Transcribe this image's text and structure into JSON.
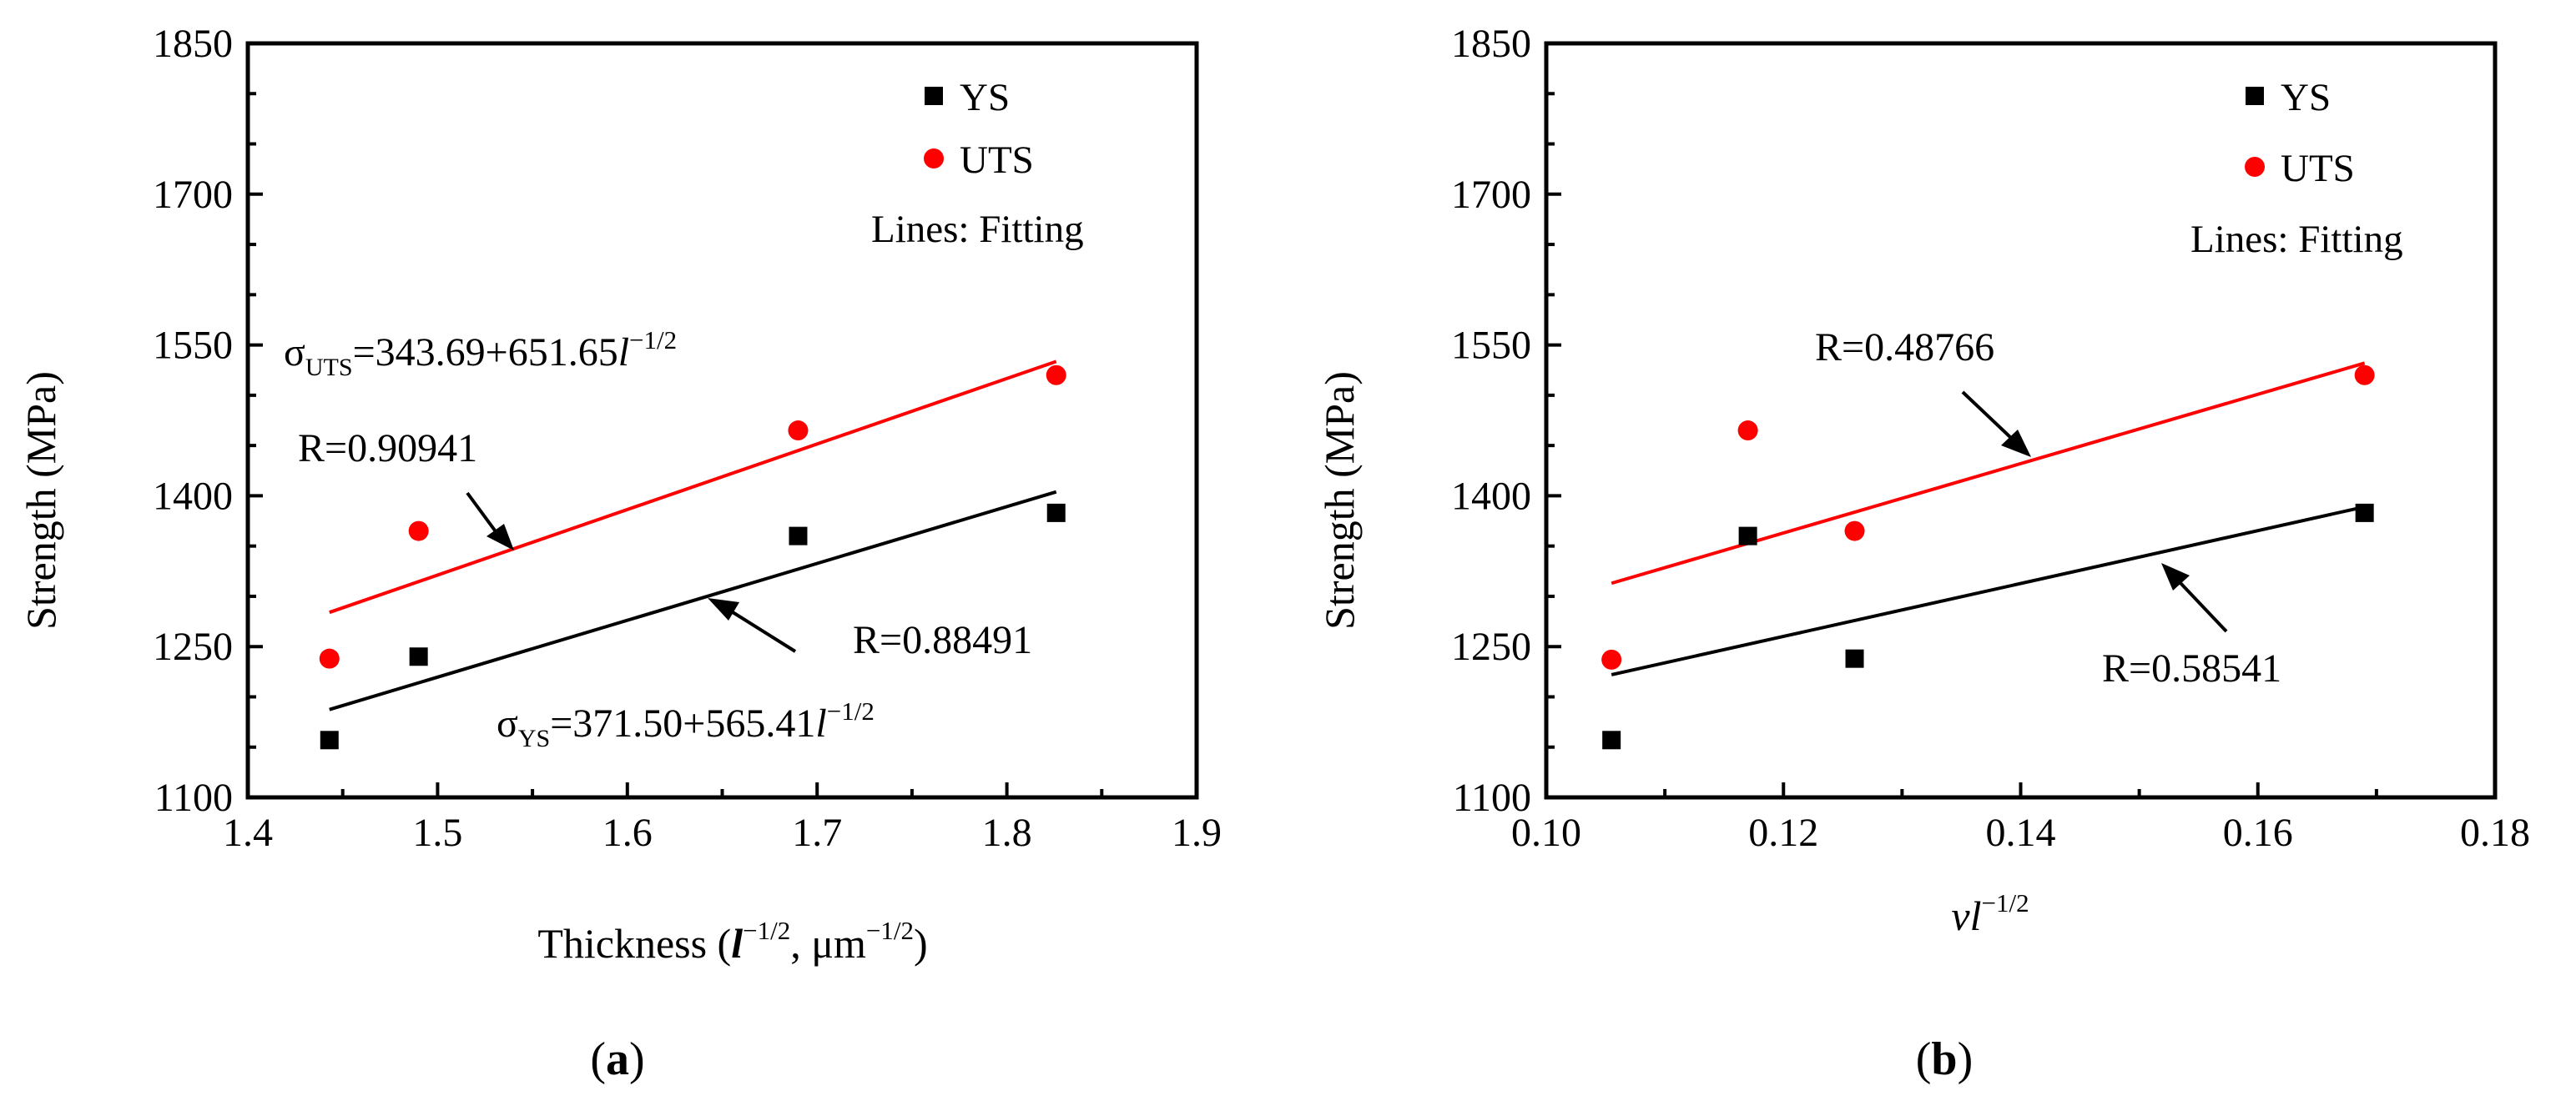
{
  "chart_data": [
    {
      "panel_label": "(a)",
      "panel_letter": "a",
      "type": "scatter",
      "xlabel": "Thickness (l⁻¹ᐟ², μm⁻¹ᐟ²)",
      "xlabel_main": "Thickness (",
      "xlabel_l": "l",
      "xlabel_sup1": "−1/2",
      "xlabel_mid": ", μm",
      "xlabel_sup2": "−1/2",
      "xlabel_end": ")",
      "ylabel": "Strength (MPa)",
      "xlim": [
        1.4,
        1.9
      ],
      "ylim": [
        1100,
        1850
      ],
      "xticks": [
        "1.4",
        "1.5",
        "1.6",
        "1.7",
        "1.8",
        "1.9"
      ],
      "yticks": [
        "1100",
        "1250",
        "1400",
        "1550",
        "1700",
        "1850"
      ],
      "legend": {
        "ys": "YS",
        "uts": "UTS",
        "note": "Lines: Fitting"
      },
      "series": [
        {
          "name": "YS",
          "color": "#000000",
          "marker": "square",
          "x": [
            1.443,
            1.49,
            1.69,
            1.826
          ],
          "y": [
            1157,
            1240,
            1360,
            1383
          ]
        },
        {
          "name": "UTS",
          "color": "#ff0000",
          "marker": "circle",
          "x": [
            1.443,
            1.49,
            1.69,
            1.826
          ],
          "y": [
            1238,
            1365,
            1465,
            1520
          ]
        }
      ],
      "fits": [
        {
          "series": "YS",
          "color": "#000000",
          "intercept": 371.5,
          "slope": 565.41,
          "x_range": [
            1.443,
            1.826
          ]
        },
        {
          "series": "UTS",
          "color": "#ff0000",
          "intercept": 343.69,
          "slope": 651.65,
          "x_range": [
            1.443,
            1.826
          ]
        }
      ],
      "annotations": {
        "uts_eq_sigma": "σ",
        "uts_eq_sub": "UTS",
        "uts_eq_main": "=343.69+651.65",
        "uts_eq_l": "l",
        "uts_eq_sup": "−1/2",
        "uts_r": "R=0.90941",
        "ys_eq_sigma": "σ",
        "ys_eq_sub": "YS",
        "ys_eq_main": "=371.50+565.41",
        "ys_eq_l": "l",
        "ys_eq_sup": "−1/2",
        "ys_r": "R=0.88491"
      }
    },
    {
      "panel_label": "(b)",
      "panel_letter": "b",
      "type": "scatter",
      "xlabel_v": "v",
      "xlabel_l": "l",
      "xlabel_sup": "−1/2",
      "ylabel": "Strength (MPa)",
      "xlim": [
        0.1,
        0.18
      ],
      "ylim": [
        1100,
        1850
      ],
      "xticks": [
        "0.10",
        "0.12",
        "0.14",
        "0.16",
        "0.18"
      ],
      "yticks": [
        "1100",
        "1250",
        "1400",
        "1550",
        "1700",
        "1850"
      ],
      "legend": {
        "ys": "YS",
        "uts": "UTS",
        "note": "Lines: Fitting"
      },
      "series": [
        {
          "name": "YS",
          "color": "#000000",
          "marker": "square",
          "x": [
            0.1055,
            0.117,
            0.126,
            0.169
          ],
          "y": [
            1157,
            1360,
            1238,
            1383
          ]
        },
        {
          "name": "UTS",
          "color": "#ff0000",
          "marker": "circle",
          "x": [
            0.1055,
            0.117,
            0.126,
            0.169
          ],
          "y": [
            1237,
            1465,
            1365,
            1520
          ]
        }
      ],
      "fits": [
        {
          "series": "YS",
          "color": "#000000",
          "x_range": [
            0.1055,
            0.169
          ],
          "y_range": [
            1222,
            1389
          ]
        },
        {
          "series": "UTS",
          "color": "#ff0000",
          "x_range": [
            0.1055,
            0.169
          ],
          "y_range": [
            1313,
            1532
          ]
        }
      ],
      "annotations": {
        "uts_r": "R=0.48766",
        "ys_r": "R=0.58541"
      }
    }
  ]
}
